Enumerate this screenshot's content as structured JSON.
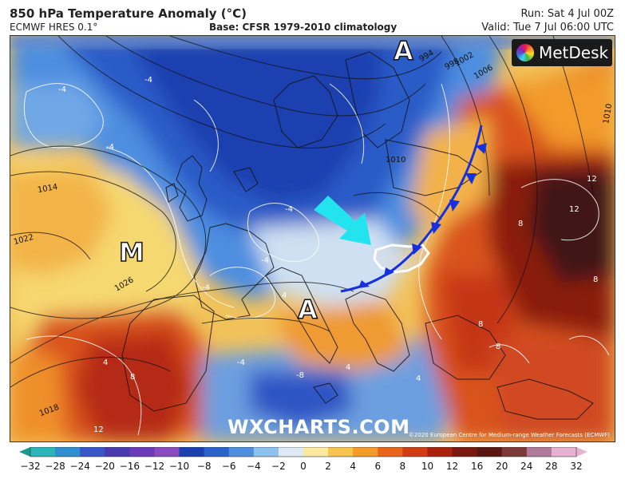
{
  "header": {
    "title": "850 hPa Temperature Anomaly (°C)",
    "model": "ECMWF HRES 0.1°",
    "base": "Base: CFSR 1979-2010 climatology",
    "run": "Run: Sat 4 Jul 00Z",
    "valid": "Valid: Tue 7 Jul 06:00 UTC"
  },
  "map": {
    "pressure_centers": [
      "A",
      "A",
      "M"
    ],
    "isobar_labels": [
      "1014",
      "1022",
      "1026",
      "1018",
      "1010",
      "1006",
      "1002",
      "998",
      "994",
      "1010"
    ],
    "anomaly_labels": [
      "-4",
      "-4",
      "-4",
      "-4",
      "-4",
      "-8",
      "-4",
      "4",
      "4",
      "4",
      "4",
      "8",
      "8",
      "8",
      "8",
      "12",
      "12",
      "12",
      "8",
      "-4"
    ],
    "branding": "MetDesk",
    "watermark": "WXCHARTS.COM",
    "copyright": "©2020 European Centre for Medium-range Weather Forecasts (ECMWF)",
    "arrow_color": "#22e3ee",
    "front_color": "#1530e0",
    "highlight_outline_color": "#ffffff"
  },
  "colorbar": {
    "ticks": [
      "−32",
      "−28",
      "−24",
      "−20",
      "−16",
      "−12",
      "−10",
      "−8",
      "−6",
      "−4",
      "−2",
      "0",
      "2",
      "4",
      "6",
      "8",
      "10",
      "12",
      "16",
      "20",
      "24",
      "28",
      "32"
    ],
    "colors": [
      "#1a9a8c",
      "#2bb5b8",
      "#2f8fd0",
      "#3a55c8",
      "#4a3ab0",
      "#6a3ab8",
      "#8a4ac0",
      "#1d3fb0",
      "#2a63cc",
      "#4e8fe0",
      "#8ec1ee",
      "#dfeaf4",
      "#fbe9a0",
      "#f7c54f",
      "#f39a2a",
      "#e8661a",
      "#cf3d12",
      "#a8220e",
      "#7a1a10",
      "#5a1812",
      "#7a3a3a",
      "#b07a9a",
      "#e7b2d2"
    ]
  }
}
